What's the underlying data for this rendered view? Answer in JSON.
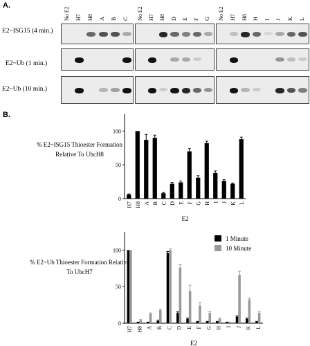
{
  "panel_a": {
    "label": "A.",
    "row_labels": [
      "E2~ISG15 (4 min.)",
      "E2~Ub (1 min.)",
      "E2~Ub (10 min.)"
    ],
    "gels": [
      {
        "lanes": [
          "No E2",
          "H7",
          "H8",
          "A",
          "B",
          "C"
        ]
      },
      {
        "lanes": [
          "No E2",
          "H7",
          "H8",
          "D",
          "E",
          "F",
          "G"
        ]
      },
      {
        "lanes": [
          "No E2",
          "H7",
          "H8",
          "H",
          "I",
          "J",
          "K",
          "L"
        ]
      }
    ]
  },
  "panel_b": {
    "label": "B."
  },
  "chart_data": [
    {
      "type": "bar",
      "ylabel": "% E2~ISG15 Thioester Formation Relative To UbcH8",
      "xlabel": "E2",
      "categories": [
        "H7",
        "H8",
        "A",
        "B",
        "C",
        "D",
        "E",
        "F",
        "G",
        "H",
        "I",
        "J",
        "K",
        "L"
      ],
      "values": [
        6,
        100,
        87,
        90,
        8,
        22,
        24,
        70,
        31,
        82,
        38,
        26,
        22,
        88
      ],
      "errors": [
        1,
        0,
        8,
        4,
        1,
        2,
        2,
        4,
        3,
        3,
        3,
        2,
        1,
        3
      ],
      "yticks": [
        0,
        50,
        100
      ],
      "ylim": [
        0,
        125
      ],
      "colors": [
        "#000000"
      ]
    },
    {
      "type": "bar",
      "ylabel": "% E2~Ub Thioester Formation Relative To UbcH7",
      "xlabel": "E2",
      "categories": [
        "H7",
        "H8",
        "A",
        "B",
        "C",
        "D",
        "E",
        "F",
        "G",
        "H",
        "I",
        "J",
        "K",
        "L"
      ],
      "series": [
        {
          "name": "1 Minute",
          "color": "#000000",
          "values": [
            100,
            1,
            1,
            3,
            96,
            14,
            6,
            2,
            2,
            2,
            1,
            9,
            6,
            2
          ],
          "errors": [
            0,
            0.5,
            0.5,
            1,
            2,
            1.5,
            1,
            0.5,
            0.5,
            0.5,
            0.5,
            1,
            1,
            0.5
          ]
        },
        {
          "name": "10 Minute",
          "color": "#999999",
          "values": [
            100,
            4,
            13,
            18,
            100,
            76,
            44,
            24,
            14,
            6,
            1,
            66,
            32,
            14
          ],
          "errors": [
            0,
            1,
            1,
            1,
            1.5,
            4,
            8,
            4,
            2,
            1,
            0.5,
            5,
            2,
            2
          ]
        }
      ],
      "yticks": [
        0,
        50,
        100
      ],
      "ylim": [
        0,
        125
      ]
    }
  ]
}
